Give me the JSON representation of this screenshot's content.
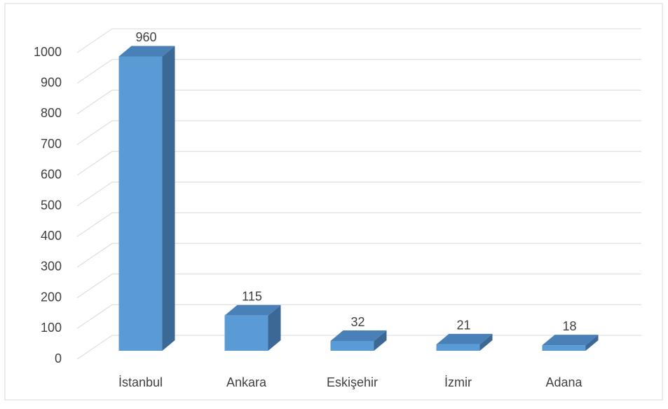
{
  "chart_data": {
    "type": "bar3d",
    "categories": [
      "İstanbul",
      "Ankara",
      "Eskişehir",
      "İzmir",
      "Adana"
    ],
    "values": [
      960,
      115,
      32,
      21,
      18
    ],
    "color": "#5b9bd5",
    "ylim": [
      0,
      1000
    ],
    "yticks": [
      0,
      100,
      200,
      300,
      400,
      500,
      600,
      700,
      800,
      900,
      1000
    ],
    "grid": true
  }
}
